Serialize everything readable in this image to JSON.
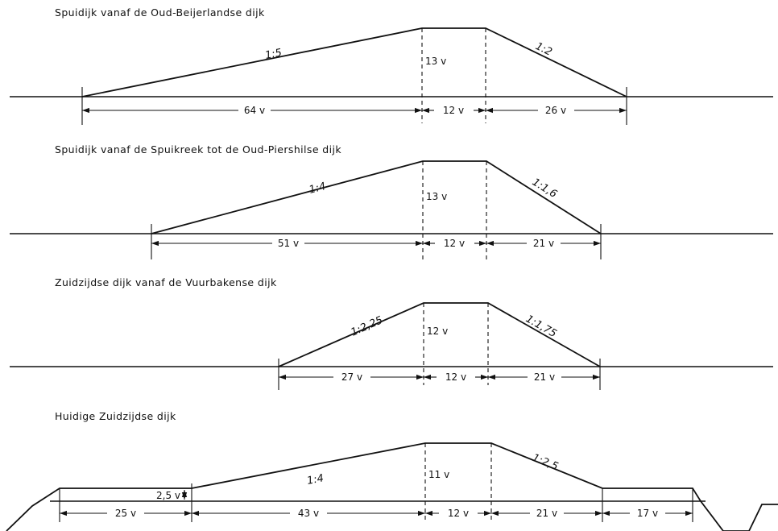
{
  "profiles": [
    {
      "title": "Spuidijk vanaf de Oud-Beijerlandse dijk",
      "slope_left": "1:5",
      "slope_right": "1:2",
      "height": "13 v",
      "dims": [
        "64 v",
        "12 v",
        "26 v"
      ]
    },
    {
      "title": "Spuidijk vanaf de Spuikreek tot de Oud-Piershilse dijk",
      "slope_left": "1:4",
      "slope_right": "1:1,6",
      "height": "13 v",
      "dims": [
        "51 v",
        "12 v",
        "21 v"
      ]
    },
    {
      "title": "Zuidzijdse dijk vanaf de Vuurbakense dijk",
      "slope_left": "1:2,25",
      "slope_right": "1:1,75",
      "height": "12 v",
      "dims": [
        "27 v",
        "12 v",
        "21 v"
      ]
    },
    {
      "title": "Huidige Zuidzijdse dijk",
      "slope_left": "1:4",
      "slope_right": "1:2,5",
      "height": "11 v",
      "berm_height": "2,5 v",
      "dims": [
        "25 v",
        "43 v",
        "12 v",
        "21 v",
        "17 v"
      ]
    }
  ]
}
